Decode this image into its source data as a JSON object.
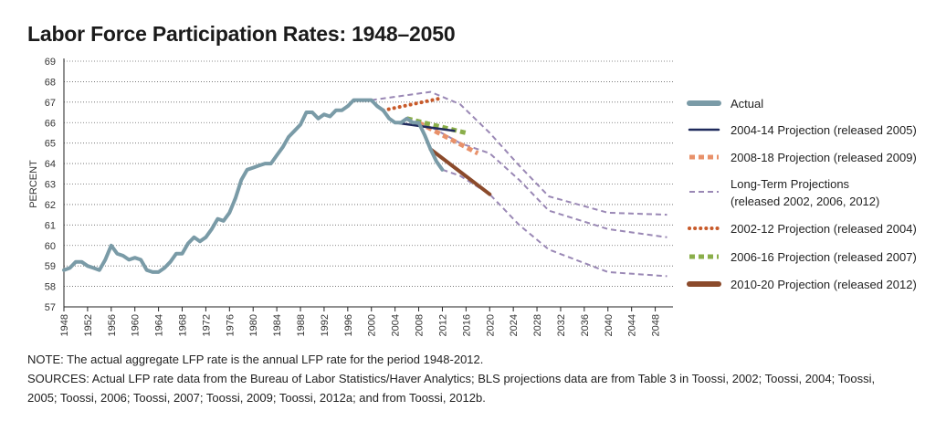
{
  "title": "Labor Force Participation Rates: 1948–2050",
  "notes": {
    "note": "NOTE:  The actual aggregate LFP rate is the annual LFP rate for the period 1948-2012.",
    "sources": "SOURCES: Actual LFP rate data from the Bureau of Labor Statistics/Haver Analytics; BLS projections data are from Table 3 in Toossi, 2002; Toossi, 2004; Toossi, 2005; Toossi, 2006; Toossi, 2007; Toossi, 2009; Toossi, 2012a; and from Toossi, 2012b."
  },
  "chart_data": {
    "type": "line",
    "title": "Labor Force Participation Rates: 1948–2050",
    "ylabel": "PERCENT",
    "xlabel": "",
    "xlim": [
      1948,
      2051
    ],
    "ylim": [
      57,
      69
    ],
    "grid": "horizontal dotted",
    "legend_position": "right",
    "x_ticks": [
      1948,
      1952,
      1956,
      1960,
      1964,
      1968,
      1972,
      1976,
      1980,
      1984,
      1988,
      1992,
      1996,
      2000,
      2004,
      2008,
      2012,
      2016,
      2020,
      2024,
      2028,
      2032,
      2036,
      2040,
      2044,
      2048
    ],
    "y_ticks": [
      57,
      58,
      59,
      60,
      61,
      62,
      63,
      64,
      65,
      66,
      67,
      68,
      69
    ],
    "series": [
      {
        "name": "Actual",
        "color": "#7a9ba7",
        "style": "solid-thick",
        "points": [
          [
            1948,
            58.8
          ],
          [
            1949,
            58.9
          ],
          [
            1950,
            59.2
          ],
          [
            1951,
            59.2
          ],
          [
            1952,
            59.0
          ],
          [
            1953,
            58.9
          ],
          [
            1954,
            58.8
          ],
          [
            1955,
            59.3
          ],
          [
            1956,
            60.0
          ],
          [
            1957,
            59.6
          ],
          [
            1958,
            59.5
          ],
          [
            1959,
            59.3
          ],
          [
            1960,
            59.4
          ],
          [
            1961,
            59.3
          ],
          [
            1962,
            58.8
          ],
          [
            1963,
            58.7
          ],
          [
            1964,
            58.7
          ],
          [
            1965,
            58.9
          ],
          [
            1966,
            59.2
          ],
          [
            1967,
            59.6
          ],
          [
            1968,
            59.6
          ],
          [
            1969,
            60.1
          ],
          [
            1970,
            60.4
          ],
          [
            1971,
            60.2
          ],
          [
            1972,
            60.4
          ],
          [
            1973,
            60.8
          ],
          [
            1974,
            61.3
          ],
          [
            1975,
            61.2
          ],
          [
            1976,
            61.6
          ],
          [
            1977,
            62.3
          ],
          [
            1978,
            63.2
          ],
          [
            1979,
            63.7
          ],
          [
            1980,
            63.8
          ],
          [
            1981,
            63.9
          ],
          [
            1982,
            64.0
          ],
          [
            1983,
            64.0
          ],
          [
            1984,
            64.4
          ],
          [
            1985,
            64.8
          ],
          [
            1986,
            65.3
          ],
          [
            1987,
            65.6
          ],
          [
            1988,
            65.9
          ],
          [
            1989,
            66.5
          ],
          [
            1990,
            66.5
          ],
          [
            1991,
            66.2
          ],
          [
            1992,
            66.4
          ],
          [
            1993,
            66.3
          ],
          [
            1994,
            66.6
          ],
          [
            1995,
            66.6
          ],
          [
            1996,
            66.8
          ],
          [
            1997,
            67.1
          ],
          [
            1998,
            67.1
          ],
          [
            1999,
            67.1
          ],
          [
            2000,
            67.1
          ],
          [
            2001,
            66.8
          ],
          [
            2002,
            66.6
          ],
          [
            2003,
            66.2
          ],
          [
            2004,
            66.0
          ],
          [
            2005,
            66.0
          ],
          [
            2006,
            66.2
          ],
          [
            2007,
            66.0
          ],
          [
            2008,
            66.0
          ],
          [
            2009,
            65.4
          ],
          [
            2010,
            64.7
          ],
          [
            2011,
            64.1
          ],
          [
            2012,
            63.7
          ]
        ]
      },
      {
        "name": "2004-14 Projection (released 2005)",
        "color": "#1f2a5c",
        "style": "solid",
        "points": [
          [
            2004,
            66.0
          ],
          [
            2014,
            65.6
          ]
        ]
      },
      {
        "name": "2008-18 Projection (released 2009)",
        "color": "#e8916a",
        "style": "dash-thick",
        "points": [
          [
            2008,
            66.0
          ],
          [
            2018,
            64.5
          ]
        ]
      },
      {
        "name": "Long-Term Projections (released 2002, 2006, 2012)",
        "legend_lines": [
          "Long-Term Projections",
          "(released 2002, 2006, 2012)"
        ],
        "color": "#9a88b5",
        "style": "dashed",
        "lines": [
          [
            [
              2000,
              67.1
            ],
            [
              2010,
              67.5
            ],
            [
              2015,
              66.9
            ],
            [
              2020,
              65.5
            ],
            [
              2025,
              63.9
            ],
            [
              2030,
              62.4
            ],
            [
              2040,
              61.6
            ],
            [
              2050,
              61.5
            ]
          ],
          [
            [
              2006,
              66.2
            ],
            [
              2010,
              65.8
            ],
            [
              2015,
              65.0
            ],
            [
              2020,
              64.5
            ],
            [
              2025,
              63.2
            ],
            [
              2030,
              61.7
            ],
            [
              2040,
              60.8
            ],
            [
              2050,
              60.4
            ]
          ],
          [
            [
              2012,
              63.7
            ],
            [
              2015,
              63.4
            ],
            [
              2020,
              62.5
            ],
            [
              2025,
              61.0
            ],
            [
              2030,
              59.8
            ],
            [
              2040,
              58.7
            ],
            [
              2050,
              58.5
            ]
          ]
        ]
      },
      {
        "name": "2002-12 Projection (released 2004)",
        "color": "#c85a2a",
        "style": "dotted-thick",
        "points": [
          [
            2002,
            66.6
          ],
          [
            2012,
            67.2
          ]
        ]
      },
      {
        "name": "2006-16 Projection (released 2007)",
        "color": "#8aae4a",
        "style": "dash-thick",
        "points": [
          [
            2006,
            66.2
          ],
          [
            2016,
            65.5
          ]
        ]
      },
      {
        "name": "2010-20 Projection (released 2012)",
        "color": "#8b4a2b",
        "style": "solid-thick",
        "points": [
          [
            2010,
            64.7
          ],
          [
            2020,
            62.5
          ]
        ]
      }
    ]
  }
}
